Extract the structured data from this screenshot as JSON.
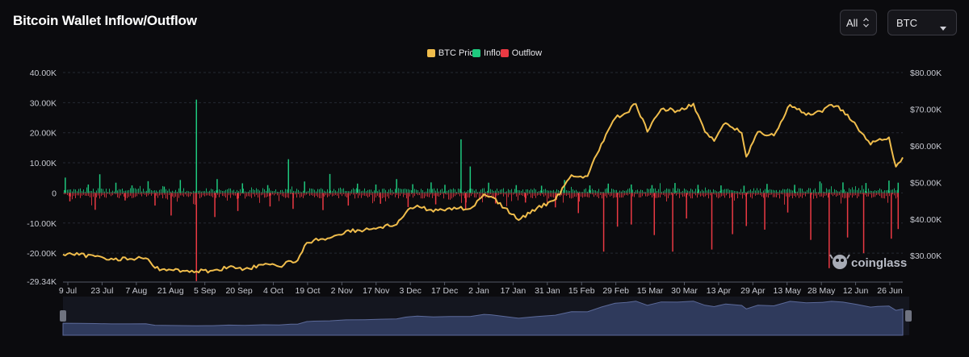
{
  "header": {
    "title": "Bitcoin Wallet Inflow/Outflow"
  },
  "controls": {
    "range": {
      "value": "All",
      "icon": "up-down-chevron-icon"
    },
    "coin": {
      "value": "BTC",
      "icon": "caret-down-icon"
    }
  },
  "watermark": {
    "text": "coinglass",
    "icon": "coinglass-logo-icon"
  },
  "colors": {
    "background": "#0b0b0e",
    "price": "#f0bd4c",
    "inflow": "#1ec97e",
    "outflow": "#ea3943",
    "navigator_fill": "#2f3a5c"
  },
  "chart_data": {
    "type": "bar+line",
    "title": "",
    "legend": {
      "placement": "top-center",
      "items": [
        "BTC Price",
        "Inflow",
        "Outflow"
      ]
    },
    "grid": true,
    "x_ticks": [
      "9 Jul",
      "23 Jul",
      "7 Aug",
      "21 Aug",
      "5 Sep",
      "20 Sep",
      "4 Oct",
      "19 Oct",
      "2 Nov",
      "17 Nov",
      "3 Dec",
      "17 Dec",
      "2 Jan",
      "17 Jan",
      "31 Jan",
      "15 Feb",
      "29 Feb",
      "15 Mar",
      "30 Mar",
      "13 Apr",
      "29 Apr",
      "13 May",
      "28 May",
      "12 Jun",
      "26 Jun"
    ],
    "y_left": {
      "ticks": [
        "40.00K",
        "30.00K",
        "20.00K",
        "10.00K",
        "0",
        "-10.00K",
        "-20.00K",
        "-29.34K"
      ],
      "range": [
        -29340,
        40000
      ]
    },
    "y_right": {
      "ticks": [
        "$80.00K",
        "$70.00K",
        "$60.00K",
        "$50.00K",
        "$40.00K",
        "$30.00K"
      ],
      "range": [
        23000,
        80000
      ]
    },
    "series": [
      {
        "name": "BTC Price",
        "kind": "line",
        "axis": "right",
        "x": [
          "2023-07-09",
          "2023-07-16",
          "2023-07-23",
          "2023-07-30",
          "2023-08-07",
          "2023-08-14",
          "2023-08-18",
          "2023-08-25",
          "2023-09-01",
          "2023-09-05",
          "2023-09-12",
          "2023-09-19",
          "2023-09-26",
          "2023-10-04",
          "2023-10-11",
          "2023-10-16",
          "2023-10-19",
          "2023-10-23",
          "2023-10-26",
          "2023-11-02",
          "2023-11-09",
          "2023-11-17",
          "2023-11-24",
          "2023-12-01",
          "2023-12-05",
          "2023-12-10",
          "2023-12-17",
          "2023-12-24",
          "2024-01-02",
          "2024-01-08",
          "2024-01-11",
          "2024-01-17",
          "2024-01-23",
          "2024-01-31",
          "2024-02-08",
          "2024-02-15",
          "2024-02-22",
          "2024-02-28",
          "2024-03-05",
          "2024-03-10",
          "2024-03-14",
          "2024-03-19",
          "2024-03-25",
          "2024-04-01",
          "2024-04-08",
          "2024-04-13",
          "2024-04-17",
          "2024-04-22",
          "2024-04-29",
          "2024-05-01",
          "2024-05-06",
          "2024-05-13",
          "2024-05-20",
          "2024-05-27",
          "2024-06-03",
          "2024-06-07",
          "2024-06-12",
          "2024-06-18",
          "2024-06-24",
          "2024-06-27",
          "2024-07-02",
          "2024-07-05",
          "2024-07-08"
        ],
        "values": [
          30300,
          30200,
          29800,
          29200,
          29100,
          29300,
          26600,
          26100,
          25900,
          25700,
          25900,
          26900,
          26400,
          27500,
          27000,
          28500,
          28700,
          33500,
          34200,
          34800,
          36700,
          37000,
          37800,
          38500,
          41700,
          43700,
          42000,
          43000,
          42800,
          46800,
          46100,
          43000,
          39700,
          43000,
          45300,
          52000,
          51700,
          60500,
          67500,
          69000,
          71400,
          63800,
          70000,
          69600,
          71500,
          63800,
          61300,
          66200,
          63500,
          57000,
          63800,
          62800,
          71200,
          68400,
          69200,
          71200,
          69700,
          65300,
          60300,
          61500,
          62300,
          54300,
          56800
        ]
      },
      {
        "name": "Inflow",
        "kind": "bar",
        "axis": "left",
        "x": [
          "2023-07-10",
          "2023-07-20",
          "2023-07-25",
          "2023-08-01",
          "2023-08-08",
          "2023-08-15",
          "2023-08-22",
          "2023-08-29",
          "2023-09-05",
          "2023-09-14",
          "2023-09-25",
          "2023-10-06",
          "2023-10-15",
          "2023-10-22",
          "2023-11-02",
          "2023-11-14",
          "2023-11-22",
          "2023-12-01",
          "2023-12-08",
          "2023-12-16",
          "2023-12-22",
          "2023-12-29",
          "2024-01-02",
          "2024-01-10",
          "2024-01-22",
          "2024-02-02",
          "2024-02-12",
          "2024-02-23",
          "2024-03-02",
          "2024-03-12",
          "2024-03-21",
          "2024-03-31",
          "2024-04-10",
          "2024-04-20",
          "2024-04-30",
          "2024-05-10",
          "2024-05-22",
          "2024-06-02",
          "2024-06-12",
          "2024-06-22",
          "2024-07-02",
          "2024-07-06"
        ],
        "values": [
          5100,
          2800,
          6200,
          3400,
          2500,
          3900,
          2100,
          4300,
          31000,
          4600,
          3200,
          2600,
          11200,
          3800,
          6300,
          3100,
          2800,
          4600,
          2900,
          3500,
          2700,
          17800,
          8800,
          3400,
          2600,
          2400,
          4300,
          2500,
          3100,
          2800,
          2600,
          3300,
          2700,
          2500,
          2400,
          3000,
          2700,
          3800,
          3500,
          3300,
          4100,
          3400
        ]
      },
      {
        "name": "Outflow",
        "kind": "bar",
        "axis": "left",
        "x": [
          "2023-07-12",
          "2023-07-23",
          "2023-08-05",
          "2023-08-18",
          "2023-08-25",
          "2023-09-05",
          "2023-09-13",
          "2023-09-23",
          "2023-10-07",
          "2023-10-17",
          "2023-10-30",
          "2023-11-10",
          "2023-11-24",
          "2023-12-06",
          "2023-12-18",
          "2023-12-31",
          "2024-01-13",
          "2024-01-26",
          "2024-02-08",
          "2024-02-18",
          "2024-02-29",
          "2024-03-06",
          "2024-03-12",
          "2024-03-22",
          "2024-03-30",
          "2024-04-05",
          "2024-04-16",
          "2024-04-25",
          "2024-05-01",
          "2024-05-09",
          "2024-05-19",
          "2024-05-29",
          "2024-06-06",
          "2024-06-14",
          "2024-06-21",
          "2024-07-03",
          "2024-07-06"
        ],
        "values": [
          -2800,
          -5600,
          -2500,
          -4200,
          -7500,
          -29300,
          -8000,
          -6000,
          -4500,
          -5300,
          -5700,
          -4200,
          -3600,
          -4700,
          -3800,
          -5400,
          -3500,
          -3200,
          -4800,
          -6700,
          -19500,
          -11200,
          -10500,
          -14000,
          -19500,
          -8500,
          -18800,
          -13700,
          -11000,
          -12200,
          -6500,
          -15600,
          -25000,
          -14800,
          -20000,
          -15200,
          -12000
        ]
      }
    ]
  }
}
